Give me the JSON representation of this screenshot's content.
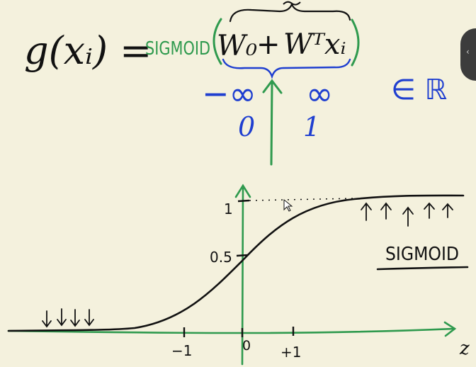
{
  "colors": {
    "background": "#f4f1dd",
    "ink_black": "#111111",
    "ink_green": "#2f9a4e",
    "ink_blue": "#1f3fd0"
  },
  "formula": {
    "lhs": "g(xᵢ) =",
    "func": "SIGMOID",
    "w0": "W₀",
    "plus": "+",
    "wtx": "Wᵀxᵢ"
  },
  "range_annotation": {
    "neg_inf": "−∞",
    "pos_inf": "∞",
    "real": "∈ ℝ",
    "zero": "0",
    "one": "1"
  },
  "graph": {
    "label": "SIGMOID",
    "x_axis_name": "z",
    "ticks_x": [
      "−1",
      "0",
      "+1"
    ],
    "ticks_y": [
      "1",
      "0.5"
    ]
  },
  "icons": {
    "side_handle": "collapse-handle-icon"
  }
}
